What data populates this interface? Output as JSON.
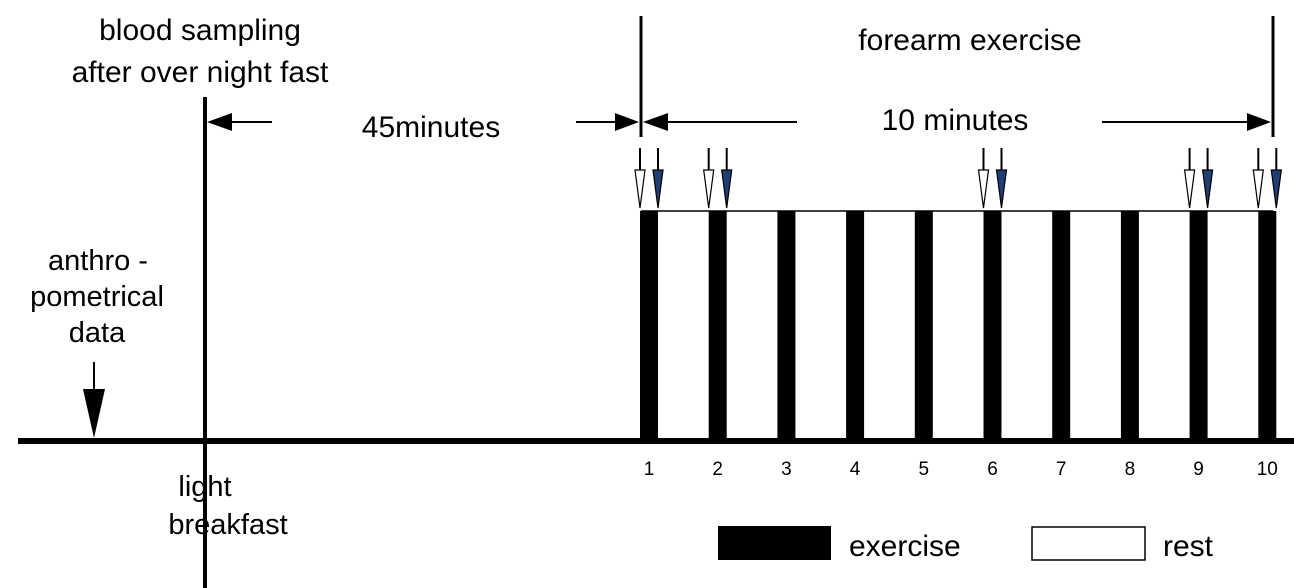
{
  "labels": {
    "blood_sampling_line1": "blood sampling",
    "blood_sampling_line2": "after over night fast",
    "forearm_exercise": "forearm exercise",
    "interval_45": "45minutes",
    "interval_10": "10 minutes",
    "anthro_line1": "anthro -",
    "anthro_line2": "pometrical",
    "anthro_line3": "data",
    "light_breakfast_line1": "light",
    "light_breakfast_line2": "breakfast"
  },
  "legend": {
    "exercise": "exercise",
    "rest": "rest"
  },
  "exercise_bouts": [
    "1",
    "2",
    "3",
    "4",
    "5",
    "6",
    "7",
    "8",
    "9",
    "10"
  ],
  "sampled_bouts": [
    1,
    2,
    6,
    9,
    10
  ],
  "colors": {
    "line": "#000000",
    "exercise_fill": "#000000",
    "rest_fill": "#ffffff",
    "post_sample_arrow": "#1f3f73"
  }
}
